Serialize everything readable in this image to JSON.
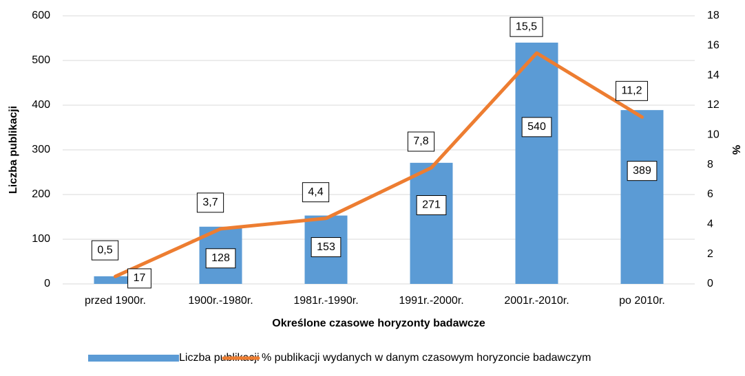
{
  "chart_data": {
    "type": "combo",
    "x_label": "Określone czasowe horyzonty badawcze",
    "y_label": "Liczba publikacji",
    "y2_label": "%",
    "categories": [
      "przed 1900r.",
      "1900r.-1980r.",
      "1981r.-1990r.",
      "1991r.-2000r.",
      "2001r.-2010r.",
      "po 2010r."
    ],
    "series": [
      {
        "name": "Liczba publikacji",
        "type": "bar",
        "color": "#5b9bd5",
        "values": [
          17,
          128,
          153,
          271,
          540,
          389
        ]
      },
      {
        "name": "% publikacji wydanych w danym czasowym horyzoncie badawczym",
        "type": "line",
        "axis": "y2",
        "color": "#ed7d31",
        "values": [
          0.5,
          3.7,
          4.4,
          7.8,
          15.5,
          11.2
        ],
        "value_labels": [
          "0,5",
          "3,7",
          "4,4",
          "7,8",
          "15,5",
          "11,2"
        ]
      }
    ],
    "ylim": [
      0,
      600
    ],
    "yticks": [
      0,
      100,
      200,
      300,
      400,
      500,
      600
    ],
    "y2lim": [
      0,
      18
    ],
    "y2ticks": [
      0,
      2,
      4,
      6,
      8,
      10,
      12,
      14,
      16,
      18
    ],
    "grid": true,
    "legend": "bottom"
  }
}
